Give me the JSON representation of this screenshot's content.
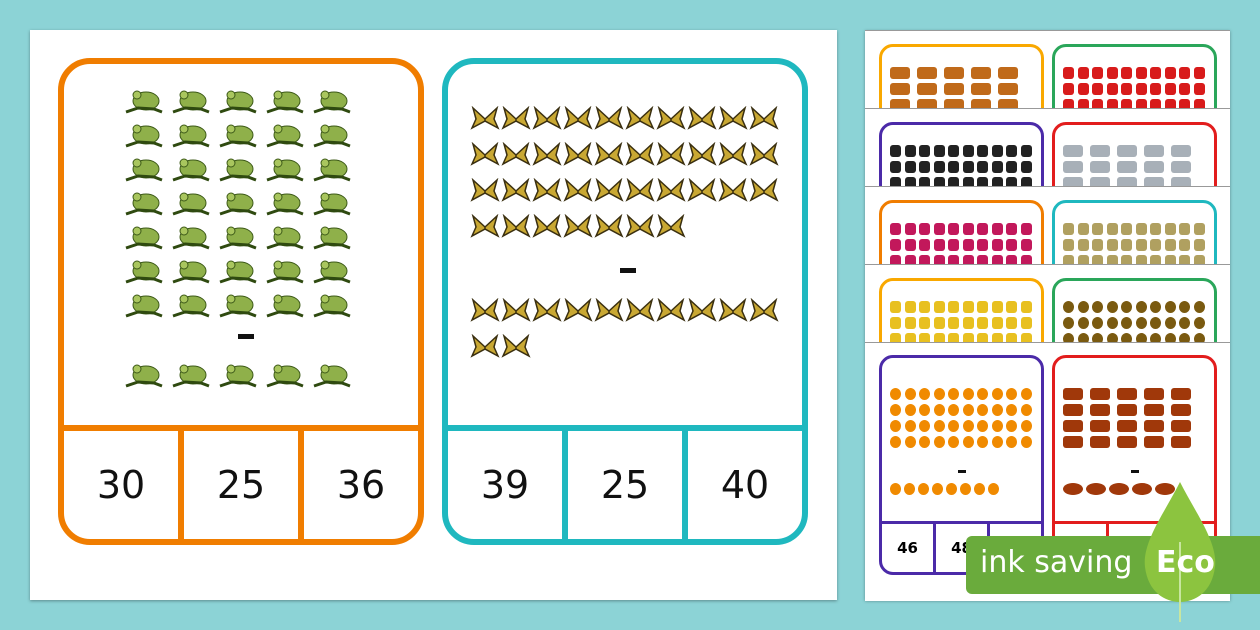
{
  "colors": {
    "background": "#8cd3d6",
    "orange": "#f07d00",
    "teal": "#1fb8bf"
  },
  "main_cards": [
    {
      "item": "frog",
      "color": "#f07d00",
      "first_count": 35,
      "second_count": 5,
      "operator": "-",
      "answers": [
        "30",
        "25",
        "36"
      ]
    },
    {
      "item": "butterfly",
      "color": "#1fb8bf",
      "first_count": 37,
      "second_count": 12,
      "operator": "-",
      "answers": [
        "39",
        "25",
        "40"
      ]
    }
  ],
  "preview_cards": [
    {
      "item": "squirrel",
      "color": "#f9a800"
    },
    {
      "item": "ladybird",
      "color": "#2aa65a"
    },
    {
      "item": "domino",
      "color": "#4b2aa8"
    },
    {
      "item": "cloud",
      "color": "#e21d1d"
    },
    {
      "item": "ice-lolly",
      "color": "#f07d00"
    },
    {
      "item": "stick",
      "color": "#1fb8bf"
    },
    {
      "item": "flower",
      "color": "#f9a800"
    },
    {
      "item": "sunflower",
      "color": "#2aa65a"
    },
    {
      "item": "orange",
      "color": "#4b2aa8",
      "operator": "-",
      "answers": [
        "46",
        "48"
      ]
    },
    {
      "item": "fish",
      "color": "#e21d1d",
      "operator": "-"
    }
  ],
  "badge": {
    "text": "ink saving",
    "eco": "Eco",
    "color": "#6aab3c"
  }
}
